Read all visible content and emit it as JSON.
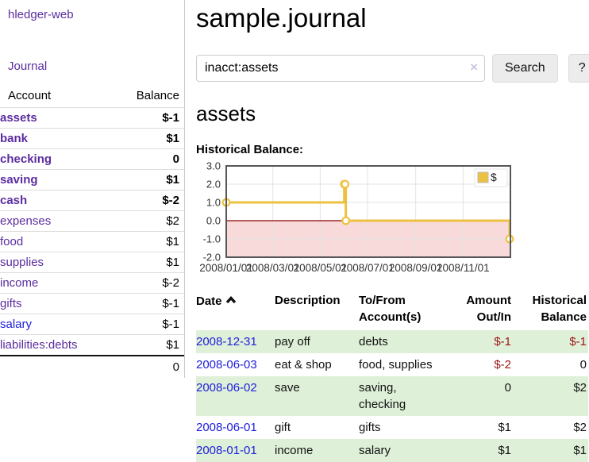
{
  "app": {
    "brand": "hledger-web",
    "nav_journal": "Journal"
  },
  "sidebar": {
    "header": {
      "account": "Account",
      "balance": "Balance"
    },
    "accounts": [
      {
        "name": "assets",
        "depth": 1,
        "bold": true,
        "balance": "$-1"
      },
      {
        "name": "bank",
        "depth": 2,
        "bold": true,
        "balance": "$1"
      },
      {
        "name": "checking",
        "depth": 3,
        "bold": true,
        "balance": "0"
      },
      {
        "name": "saving",
        "depth": 3,
        "bold": true,
        "balance": "$1"
      },
      {
        "name": "cash",
        "depth": 2,
        "bold": true,
        "balance": "$-2"
      },
      {
        "name": "expenses",
        "depth": 1,
        "bold": false,
        "balance": "$2"
      },
      {
        "name": "food",
        "depth": 2,
        "bold": false,
        "balance": "$1"
      },
      {
        "name": "supplies",
        "depth": 2,
        "bold": false,
        "balance": "$1"
      },
      {
        "name": "income",
        "depth": 1,
        "bold": false,
        "balance": "$-2"
      },
      {
        "name": "gifts",
        "depth": 2,
        "bold": false,
        "balance": "$-1"
      },
      {
        "name": "salary",
        "depth": 2,
        "bold": false,
        "balance": "$-1"
      },
      {
        "name": "liabilities:debts",
        "depth": 1,
        "bold": false,
        "balance": "$1"
      }
    ],
    "total": "0"
  },
  "header": {
    "title": "sample.journal"
  },
  "search": {
    "value": "inacct:assets",
    "clear_icon": "×",
    "button": "Search",
    "help_button": "?"
  },
  "account_page": {
    "heading": "assets",
    "chart_label": "Historical Balance:"
  },
  "chart_data": {
    "type": "line",
    "style": "step-with-markers",
    "title": "Historical Balance",
    "legend": {
      "position": "top-right",
      "entries": [
        "$"
      ]
    },
    "series": [
      {
        "name": "$",
        "points": [
          [
            "2008-01-01",
            1
          ],
          [
            "2008-06-01",
            2
          ],
          [
            "2008-06-02",
            2
          ],
          [
            "2008-06-03",
            0
          ],
          [
            "2008-12-31",
            -1
          ]
        ]
      }
    ],
    "xlim": [
      "2008-01-01",
      "2009-01-01"
    ],
    "ylim": [
      -2,
      3
    ],
    "y_ticks": [
      3.0,
      2.0,
      1.0,
      0.0,
      -1.0,
      -2.0
    ],
    "x_ticks": [
      "2008/01/01",
      "2008/03/01",
      "2008/05/01",
      "2008/07/01",
      "2008/09/01",
      "2008/11/01"
    ],
    "grid": true,
    "negative_region_shaded": true
  },
  "register": {
    "columns": [
      {
        "label": "Date",
        "sort": "ascending"
      },
      {
        "label": "Description"
      },
      {
        "label": "To/From Account(s)"
      },
      {
        "label": "Amount Out/In"
      },
      {
        "label": "Historical Balance"
      }
    ],
    "rows": [
      {
        "date": "2008-12-31",
        "description": "pay off",
        "accounts": "debts",
        "amount": "$-1",
        "balance": "$-1"
      },
      {
        "date": "2008-06-03",
        "description": "eat & shop",
        "accounts": "food, supplies",
        "amount": "$-2",
        "balance": "0"
      },
      {
        "date": "2008-06-02",
        "description": "save",
        "accounts": "saving, checking",
        "amount": "0",
        "balance": "$2"
      },
      {
        "date": "2008-06-01",
        "description": "gift",
        "accounts": "gifts",
        "amount": "$1",
        "balance": "$2"
      },
      {
        "date": "2008-01-01",
        "description": "income",
        "accounts": "salary",
        "amount": "$1",
        "balance": "$1"
      }
    ]
  },
  "colors": {
    "accent_purple": "#5b2da0",
    "link_blue": "#2020dd",
    "negative_strong": "#9e1414",
    "negative_soft": "#c46a6a",
    "row_green": "#dff0d8",
    "chart_line": "#edc240",
    "chart_negative_fill": "#f9dada",
    "chart_zero_line": "#8b0000",
    "chart_grid": "#e3e3e3",
    "chart_border": "#565656"
  }
}
